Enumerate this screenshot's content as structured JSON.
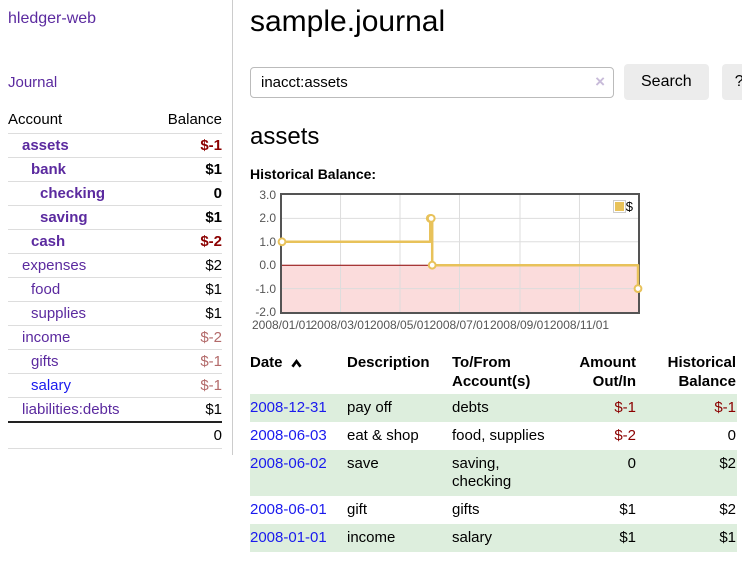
{
  "colors": {
    "accent_purple": "#5B2A9F",
    "link_blue": "#1A1AEE",
    "negative_strong": "#8B0000",
    "negative_soft": "#B36A6A",
    "row_green": "#DDEEDD",
    "chart_line": "#E8C25A",
    "chart_negative_bg": "#FBDCDC",
    "chart_zero_line": "#8B0000",
    "button_bg": "#ECECEC"
  },
  "sidebar": {
    "app_title": "hledger-web",
    "journal_link": "Journal",
    "accounts_table": {
      "headers": {
        "account": "Account",
        "balance": "Balance"
      },
      "rows": [
        {
          "account": "assets",
          "depth": 1,
          "bold": true,
          "balance": "$-1",
          "balance_style": "negative-strong"
        },
        {
          "account": "bank",
          "depth": 2,
          "bold": true,
          "balance": "$1",
          "balance_style": "normal"
        },
        {
          "account": "checking",
          "depth": 3,
          "bold": true,
          "balance": "0",
          "balance_style": "normal"
        },
        {
          "account": "saving",
          "depth": 3,
          "bold": true,
          "balance": "$1",
          "balance_style": "normal"
        },
        {
          "account": "cash",
          "depth": 2,
          "bold": true,
          "balance": "$-2",
          "balance_style": "negative-strong"
        },
        {
          "account": "expenses",
          "depth": 1,
          "bold": false,
          "balance": "$2",
          "balance_style": "normal"
        },
        {
          "account": "food",
          "depth": 2,
          "bold": false,
          "balance": "$1",
          "balance_style": "normal"
        },
        {
          "account": "supplies",
          "depth": 2,
          "bold": false,
          "balance": "$1",
          "balance_style": "normal"
        },
        {
          "account": "income",
          "depth": 1,
          "bold": false,
          "balance": "$-2",
          "balance_style": "negative-soft"
        },
        {
          "account": "gifts",
          "depth": 2,
          "bold": false,
          "balance": "$-1",
          "balance_style": "negative-soft"
        },
        {
          "account": "salary",
          "depth": 2,
          "bold": false,
          "balance": "$-1",
          "balance_style": "negative-soft",
          "link_blue": true
        },
        {
          "account": "liabilities:debts",
          "depth": 1,
          "bold": false,
          "balance": "$1",
          "balance_style": "normal"
        }
      ],
      "total": "0"
    }
  },
  "main": {
    "title": "sample.journal",
    "search": {
      "value": "inacct:assets",
      "clear_icon": "×",
      "button_label": "Search",
      "help_label": "?"
    },
    "account_heading": "assets",
    "chart_label": "Historical Balance:",
    "register_table": {
      "headers": [
        {
          "label": "Date",
          "sort": "asc",
          "sortable": true
        },
        {
          "label": "Description"
        },
        {
          "label": "To/From Account(s)"
        },
        {
          "label": "Amount Out/In",
          "num": true
        },
        {
          "label": "Historical Balance",
          "num": true
        }
      ],
      "rows": [
        {
          "date": "2008-12-31",
          "description": "pay off",
          "accounts": "debts",
          "amount": "$-1",
          "amount_neg": true,
          "balance": "$-1",
          "balance_neg": true,
          "shaded": true
        },
        {
          "date": "2008-06-03",
          "description": "eat & shop",
          "accounts": "food, supplies",
          "amount": "$-2",
          "amount_neg": true,
          "balance": "0",
          "balance_neg": false,
          "shaded": false
        },
        {
          "date": "2008-06-02",
          "description": "save",
          "accounts": "saving, checking",
          "amount": "0",
          "amount_neg": false,
          "balance": "$2",
          "balance_neg": false,
          "shaded": true
        },
        {
          "date": "2008-06-01",
          "description": "gift",
          "accounts": "gifts",
          "amount": "$1",
          "amount_neg": false,
          "balance": "$2",
          "balance_neg": false,
          "shaded": false
        },
        {
          "date": "2008-01-01",
          "description": "income",
          "accounts": "salary",
          "amount": "$1",
          "amount_neg": false,
          "balance": "$1",
          "balance_neg": false,
          "shaded": true
        }
      ]
    }
  },
  "chart_data": {
    "type": "line",
    "title": "Historical Balance:",
    "step": true,
    "grid": true,
    "legend": [
      {
        "label": "$",
        "color": "#E8C25A"
      }
    ],
    "legend_position": "top-right",
    "ylim": [
      -2.0,
      3.0
    ],
    "yticks": [
      3.0,
      2.0,
      1.0,
      0.0,
      -1.0,
      -2.0
    ],
    "x_range_days": 365,
    "xticks": [
      {
        "label": "2008/01/01",
        "day": 0
      },
      {
        "label": "2008/03/01",
        "day": 60
      },
      {
        "label": "2008/05/01",
        "day": 121
      },
      {
        "label": "2008/07/01",
        "day": 182
      },
      {
        "label": "2008/09/01",
        "day": 244
      },
      {
        "label": "2008/11/01",
        "day": 305
      }
    ],
    "series": [
      {
        "name": "$",
        "color": "#E8C25A",
        "points": [
          {
            "date": "2008-01-01",
            "day": 0,
            "value": 1
          },
          {
            "date": "2008-06-01",
            "day": 152,
            "value": 2
          },
          {
            "date": "2008-06-02",
            "day": 153,
            "value": 2
          },
          {
            "date": "2008-06-03",
            "day": 154,
            "value": 0
          },
          {
            "date": "2008-12-31",
            "day": 365,
            "value": -1
          }
        ]
      }
    ],
    "negative_region_color": "#FBDCDC",
    "zero_line_color": "#8B0000"
  }
}
